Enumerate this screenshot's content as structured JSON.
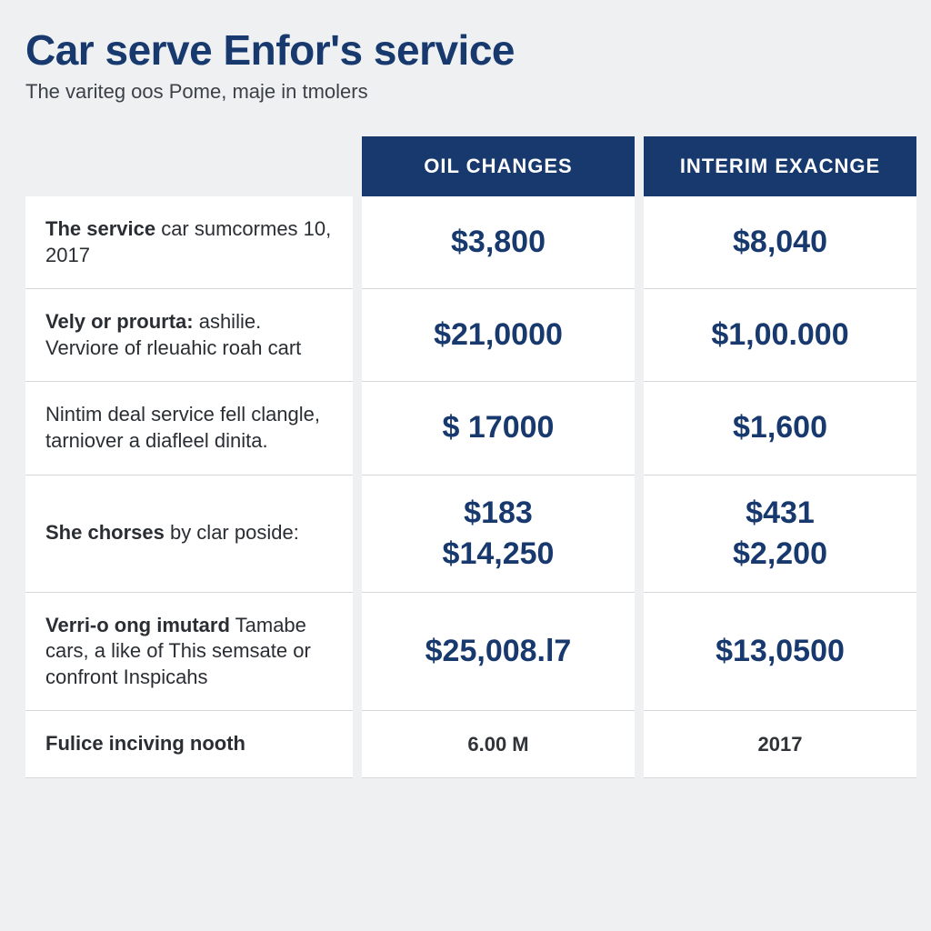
{
  "header": {
    "title": "Car serve Enfor's service",
    "subtitle": "The variteg oos Pome, maje in tmolers"
  },
  "table": {
    "columns": [
      "OIL CHANGES",
      "INTERIM EXACNGE"
    ],
    "colors": {
      "header_bg": "#18396e",
      "header_text": "#ffffff",
      "value_text": "#18396e",
      "page_bg": "#eef0f2",
      "cell_bg": "#ffffff",
      "border": "#d6d8db",
      "label_text": "#2a2e33"
    },
    "typography": {
      "title_fontsize": 46,
      "subtitle_fontsize": 22,
      "colhead_fontsize": 22,
      "label_fontsize": 22,
      "value_fontsize": 34,
      "small_value_fontsize": 22
    },
    "rows": [
      {
        "label_bold": "The service",
        "label_rest": " car sumcormes 10, 2017",
        "col1": [
          "$3,800"
        ],
        "col2": [
          "$8,040"
        ]
      },
      {
        "label_bold": "Vely or prourta:",
        "label_rest": " ashilie. Verviore of rleuahic roah cart",
        "col1": [
          "$21,0000"
        ],
        "col2": [
          "$1,00.000"
        ]
      },
      {
        "label_bold": "",
        "label_rest": "Nintim deal service fell clanɡle, tarniover a diafleel dinita.",
        "col1": [
          "$ 17000"
        ],
        "col2": [
          "$1,600"
        ]
      },
      {
        "label_bold": "She chorses",
        "label_rest": " by clar poside:",
        "col1": [
          "$183",
          "$14,250"
        ],
        "col2": [
          "$431",
          "$2,200"
        ]
      },
      {
        "label_bold": "Verri-o ong imutard",
        "label_rest": " Tamabe cars, a like of This semsate or confront Inspicahs",
        "col1": [
          "$25,008.l7"
        ],
        "col2": [
          "$13,0500"
        ]
      },
      {
        "label_bold": "Fulice inciving nooth",
        "label_rest": "",
        "col1": [
          "6.00 M"
        ],
        "col2": [
          "2017"
        ],
        "small": true
      }
    ]
  }
}
